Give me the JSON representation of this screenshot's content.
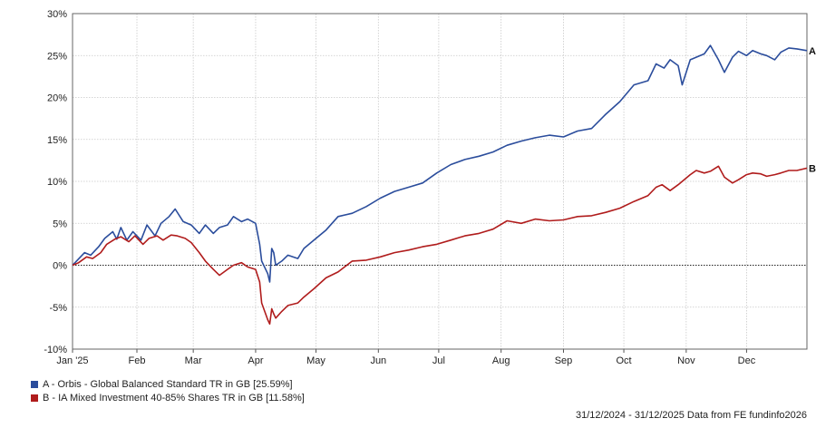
{
  "chart_data": {
    "type": "line",
    "yaxis": {
      "min": -10,
      "max": 30,
      "ticks": [
        -10,
        -5,
        0,
        5,
        10,
        15,
        20,
        25,
        30
      ],
      "tick_labels": [
        "-10%",
        "-5%",
        "0%",
        "5%",
        "10%",
        "15%",
        "20%",
        "25%",
        "30%"
      ]
    },
    "xaxis": {
      "start": "2024-12-31",
      "end": "2025-12-31",
      "ticks": [
        {
          "date": "2025-01-01",
          "label": "Jan '25"
        },
        {
          "date": "2025-02-01",
          "label": "Feb"
        },
        {
          "date": "2025-03-01",
          "label": "Mar"
        },
        {
          "date": "2025-04-01",
          "label": "Apr"
        },
        {
          "date": "2025-05-01",
          "label": "May"
        },
        {
          "date": "2025-06-01",
          "label": "Jun"
        },
        {
          "date": "2025-07-01",
          "label": "Jul"
        },
        {
          "date": "2025-08-01",
          "label": "Aug"
        },
        {
          "date": "2025-09-01",
          "label": "Sep"
        },
        {
          "date": "2025-10-01",
          "label": "Oct"
        },
        {
          "date": "2025-11-01",
          "label": "Nov"
        },
        {
          "date": "2025-12-01",
          "label": "Dec"
        }
      ]
    },
    "grid": true,
    "zero_line": true,
    "series": [
      {
        "label": "A",
        "name": "A - Orbis - Global Balanced Standard TR in GB [25.59%]",
        "color": "#2b4d9c",
        "points": [
          [
            "2024-12-31",
            0
          ],
          [
            "2025-01-02",
            0.5
          ],
          [
            "2025-01-06",
            1.5
          ],
          [
            "2025-01-09",
            1.2
          ],
          [
            "2025-01-13",
            2.2
          ],
          [
            "2025-01-16",
            3.2
          ],
          [
            "2025-01-20",
            4.0
          ],
          [
            "2025-01-22",
            3.1
          ],
          [
            "2025-01-24",
            4.5
          ],
          [
            "2025-01-27",
            3.0
          ],
          [
            "2025-01-30",
            4.0
          ],
          [
            "2025-02-03",
            3.0
          ],
          [
            "2025-02-06",
            4.8
          ],
          [
            "2025-02-10",
            3.5
          ],
          [
            "2025-02-13",
            5.0
          ],
          [
            "2025-02-17",
            5.8
          ],
          [
            "2025-02-20",
            6.7
          ],
          [
            "2025-02-24",
            5.2
          ],
          [
            "2025-02-28",
            4.8
          ],
          [
            "2025-03-04",
            3.8
          ],
          [
            "2025-03-07",
            4.8
          ],
          [
            "2025-03-11",
            3.8
          ],
          [
            "2025-03-14",
            4.5
          ],
          [
            "2025-03-18",
            4.8
          ],
          [
            "2025-03-21",
            5.8
          ],
          [
            "2025-03-25",
            5.2
          ],
          [
            "2025-03-28",
            5.5
          ],
          [
            "2025-04-01",
            5.0
          ],
          [
            "2025-04-03",
            2.5
          ],
          [
            "2025-04-04",
            0.5
          ],
          [
            "2025-04-07",
            -1.0
          ],
          [
            "2025-04-08",
            -2.0
          ],
          [
            "2025-04-09",
            2.0
          ],
          [
            "2025-04-10",
            1.5
          ],
          [
            "2025-04-11",
            0.0
          ],
          [
            "2025-04-14",
            0.5
          ],
          [
            "2025-04-17",
            1.2
          ],
          [
            "2025-04-22",
            0.8
          ],
          [
            "2025-04-25",
            2.0
          ],
          [
            "2025-04-30",
            3.0
          ],
          [
            "2025-05-06",
            4.2
          ],
          [
            "2025-05-12",
            5.8
          ],
          [
            "2025-05-19",
            6.2
          ],
          [
            "2025-05-26",
            7.0
          ],
          [
            "2025-06-02",
            8.0
          ],
          [
            "2025-06-09",
            8.8
          ],
          [
            "2025-06-16",
            9.3
          ],
          [
            "2025-06-23",
            9.8
          ],
          [
            "2025-06-30",
            11.0
          ],
          [
            "2025-07-07",
            12.0
          ],
          [
            "2025-07-14",
            12.6
          ],
          [
            "2025-07-21",
            13.0
          ],
          [
            "2025-07-28",
            13.5
          ],
          [
            "2025-08-04",
            14.3
          ],
          [
            "2025-08-11",
            14.8
          ],
          [
            "2025-08-18",
            15.2
          ],
          [
            "2025-08-25",
            15.5
          ],
          [
            "2025-09-01",
            15.3
          ],
          [
            "2025-09-08",
            16.0
          ],
          [
            "2025-09-15",
            16.3
          ],
          [
            "2025-09-22",
            18.0
          ],
          [
            "2025-09-29",
            19.5
          ],
          [
            "2025-10-06",
            21.5
          ],
          [
            "2025-10-13",
            22.0
          ],
          [
            "2025-10-17",
            24.0
          ],
          [
            "2025-10-21",
            23.5
          ],
          [
            "2025-10-24",
            24.5
          ],
          [
            "2025-10-28",
            23.8
          ],
          [
            "2025-10-30",
            21.5
          ],
          [
            "2025-11-03",
            24.5
          ],
          [
            "2025-11-06",
            24.8
          ],
          [
            "2025-11-10",
            25.2
          ],
          [
            "2025-11-13",
            26.2
          ],
          [
            "2025-11-17",
            24.5
          ],
          [
            "2025-11-20",
            23.0
          ],
          [
            "2025-11-24",
            24.8
          ],
          [
            "2025-11-27",
            25.5
          ],
          [
            "2025-12-01",
            25.0
          ],
          [
            "2025-12-04",
            25.6
          ],
          [
            "2025-12-08",
            25.2
          ],
          [
            "2025-12-11",
            25.0
          ],
          [
            "2025-12-15",
            24.5
          ],
          [
            "2025-12-18",
            25.4
          ],
          [
            "2025-12-22",
            25.9
          ],
          [
            "2025-12-26",
            25.8
          ],
          [
            "2025-12-31",
            25.59
          ]
        ]
      },
      {
        "label": "B",
        "name": "B - IA Mixed Investment 40-85% Shares TR in GB [11.58%]",
        "color": "#b01c1c",
        "points": [
          [
            "2024-12-31",
            0
          ],
          [
            "2025-01-03",
            0.3
          ],
          [
            "2025-01-07",
            1.0
          ],
          [
            "2025-01-10",
            0.8
          ],
          [
            "2025-01-14",
            1.5
          ],
          [
            "2025-01-17",
            2.5
          ],
          [
            "2025-01-21",
            3.1
          ],
          [
            "2025-01-24",
            3.4
          ],
          [
            "2025-01-28",
            2.8
          ],
          [
            "2025-01-31",
            3.5
          ],
          [
            "2025-02-04",
            2.5
          ],
          [
            "2025-02-07",
            3.2
          ],
          [
            "2025-02-11",
            3.5
          ],
          [
            "2025-02-14",
            3.0
          ],
          [
            "2025-02-18",
            3.6
          ],
          [
            "2025-02-21",
            3.5
          ],
          [
            "2025-02-25",
            3.2
          ],
          [
            "2025-02-28",
            2.7
          ],
          [
            "2025-03-04",
            1.5
          ],
          [
            "2025-03-07",
            0.5
          ],
          [
            "2025-03-11",
            -0.5
          ],
          [
            "2025-03-14",
            -1.2
          ],
          [
            "2025-03-18",
            -0.5
          ],
          [
            "2025-03-21",
            0.0
          ],
          [
            "2025-03-25",
            0.3
          ],
          [
            "2025-03-28",
            -0.2
          ],
          [
            "2025-04-01",
            -0.5
          ],
          [
            "2025-04-03",
            -2.0
          ],
          [
            "2025-04-04",
            -4.5
          ],
          [
            "2025-04-07",
            -6.5
          ],
          [
            "2025-04-08",
            -7.0
          ],
          [
            "2025-04-09",
            -5.2
          ],
          [
            "2025-04-10",
            -5.8
          ],
          [
            "2025-04-11",
            -6.3
          ],
          [
            "2025-04-14",
            -5.5
          ],
          [
            "2025-04-17",
            -4.8
          ],
          [
            "2025-04-22",
            -4.5
          ],
          [
            "2025-04-25",
            -3.8
          ],
          [
            "2025-04-30",
            -2.8
          ],
          [
            "2025-05-06",
            -1.5
          ],
          [
            "2025-05-12",
            -0.8
          ],
          [
            "2025-05-19",
            0.5
          ],
          [
            "2025-05-26",
            0.6
          ],
          [
            "2025-06-02",
            1.0
          ],
          [
            "2025-06-09",
            1.5
          ],
          [
            "2025-06-16",
            1.8
          ],
          [
            "2025-06-23",
            2.2
          ],
          [
            "2025-06-30",
            2.5
          ],
          [
            "2025-07-07",
            3.0
          ],
          [
            "2025-07-14",
            3.5
          ],
          [
            "2025-07-21",
            3.8
          ],
          [
            "2025-07-28",
            4.3
          ],
          [
            "2025-08-04",
            5.3
          ],
          [
            "2025-08-11",
            5.0
          ],
          [
            "2025-08-18",
            5.5
          ],
          [
            "2025-08-25",
            5.3
          ],
          [
            "2025-09-01",
            5.4
          ],
          [
            "2025-09-08",
            5.8
          ],
          [
            "2025-09-15",
            5.9
          ],
          [
            "2025-09-22",
            6.3
          ],
          [
            "2025-09-29",
            6.8
          ],
          [
            "2025-10-06",
            7.6
          ],
          [
            "2025-10-13",
            8.3
          ],
          [
            "2025-10-17",
            9.3
          ],
          [
            "2025-10-20",
            9.6
          ],
          [
            "2025-10-24",
            8.9
          ],
          [
            "2025-10-28",
            9.6
          ],
          [
            "2025-11-03",
            10.8
          ],
          [
            "2025-11-06",
            11.3
          ],
          [
            "2025-11-10",
            11.0
          ],
          [
            "2025-11-13",
            11.2
          ],
          [
            "2025-11-17",
            11.8
          ],
          [
            "2025-11-20",
            10.5
          ],
          [
            "2025-11-24",
            9.8
          ],
          [
            "2025-11-27",
            10.2
          ],
          [
            "2025-12-01",
            10.8
          ],
          [
            "2025-12-04",
            11.0
          ],
          [
            "2025-12-08",
            10.9
          ],
          [
            "2025-12-11",
            10.6
          ],
          [
            "2025-12-15",
            10.8
          ],
          [
            "2025-12-18",
            11.0
          ],
          [
            "2025-12-22",
            11.3
          ],
          [
            "2025-12-26",
            11.3
          ],
          [
            "2025-12-31",
            11.58
          ]
        ]
      }
    ]
  },
  "footer": "31/12/2024 - 31/12/2025 Data from FE fundinfo2026"
}
